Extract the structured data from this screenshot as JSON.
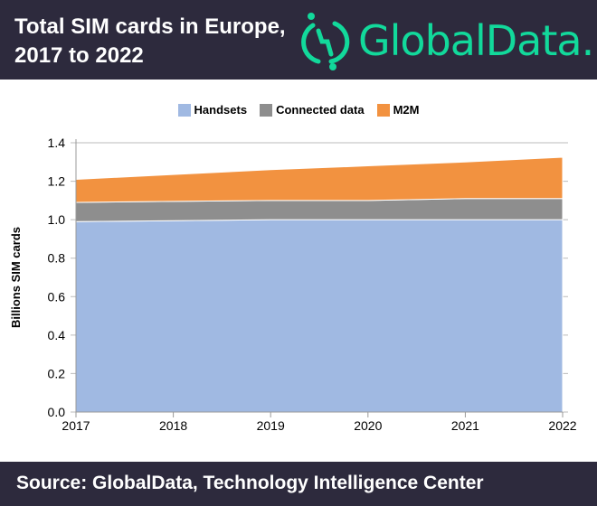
{
  "header": {
    "title": "Total SIM cards in Europe, 2017 to 2022",
    "logo_text": "GlobalData."
  },
  "footer": {
    "source": "Source: GlobalData, Technology Intelligence Center"
  },
  "chart_data": {
    "type": "area",
    "stacked": true,
    "title": "Total SIM cards in Europe, 2017 to 2022",
    "xlabel": "",
    "ylabel": "Billions SIM cards",
    "x": [
      "2017",
      "2018",
      "2019",
      "2020",
      "2021",
      "2022"
    ],
    "ylim": [
      0,
      1.4
    ],
    "yticks": [
      "0.0",
      "0.2",
      "0.4",
      "0.6",
      "0.8",
      "1.0",
      "1.2",
      "1.4"
    ],
    "legend_position": "top",
    "series": [
      {
        "name": "Handsets",
        "color": "#a0b9e2",
        "values": [
          0.99,
          0.995,
          1.0,
          1.0,
          1.0,
          1.0
        ]
      },
      {
        "name": "Connected data",
        "color": "#8e8e8e",
        "values": [
          0.1,
          0.1,
          0.1,
          0.1,
          0.11,
          0.11
        ]
      },
      {
        "name": "M2M",
        "color": "#f29240",
        "values": [
          0.12,
          0.14,
          0.16,
          0.18,
          0.19,
          0.215
        ]
      }
    ]
  }
}
